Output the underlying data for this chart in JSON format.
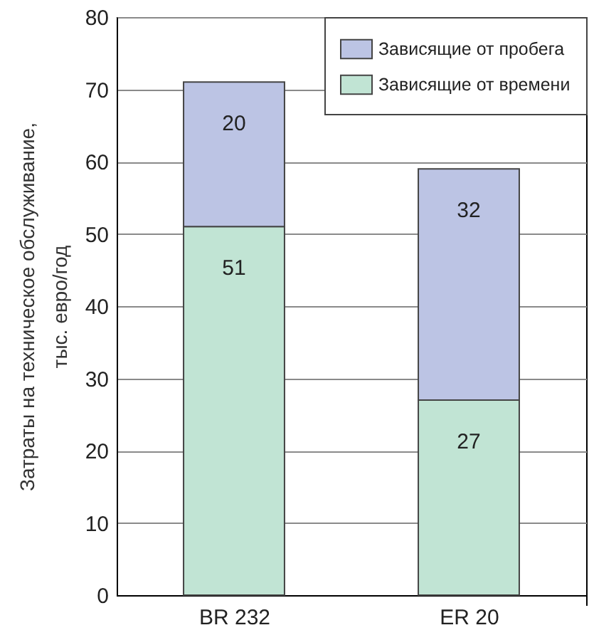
{
  "chart_data": {
    "type": "bar",
    "stacked": true,
    "ylabel": "Затраты на техническое обслуживание,\nтыс. евро/год",
    "categories": [
      "BR 232",
      "ER 20"
    ],
    "series": [
      {
        "name": "Зависящие от времени",
        "color": "#c1e4d4",
        "values": [
          51,
          27
        ]
      },
      {
        "name": "Зависящие от пробега",
        "color": "#bcc4e4",
        "values": [
          20,
          32
        ]
      }
    ],
    "ylim": [
      0,
      80
    ],
    "yticks": [
      0,
      10,
      20,
      30,
      40,
      50,
      60,
      70,
      80
    ],
    "grid": "y",
    "legend": "top right",
    "data_labels": true
  }
}
